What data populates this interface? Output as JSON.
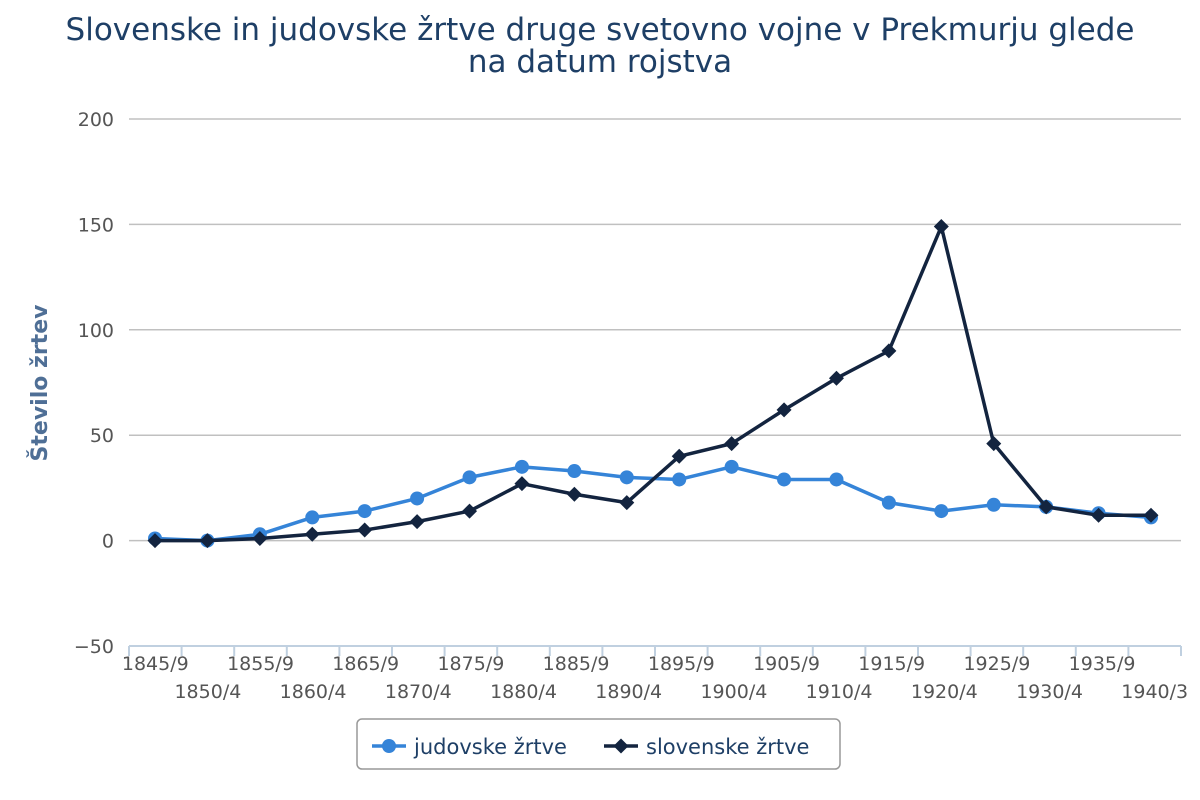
{
  "chart_data": {
    "type": "line",
    "title": "Slovenske in judovske žrtve druge svetovno vojne v Prekmurju glede na datum rojstva",
    "title_lines": [
      "Slovenske in judovske žrtve druge svetovno vojne v Prekmurju glede",
      "na datum rojstva"
    ],
    "ylabel": "Število žrtev",
    "xlabel": "",
    "ylim": [
      -50,
      200
    ],
    "yticks": [
      200,
      150,
      100,
      50,
      0,
      -50
    ],
    "ytick_labels": [
      "200",
      "150",
      "100",
      "50",
      "0",
      "−50"
    ],
    "categories": [
      "1845/9",
      "1850/4",
      "1855/9",
      "1860/4",
      "1865/9",
      "1870/4",
      "1875/9",
      "1880/4",
      "1885/9",
      "1890/4",
      "1895/9",
      "1900/4",
      "1905/9",
      "1910/4",
      "1915/9",
      "1920/4",
      "1925/9",
      "1930/4",
      "1935/9",
      "1940/3"
    ],
    "grid": true,
    "legend_position": "bottom-center",
    "series": [
      {
        "name": "judovske žrtve",
        "color": "#3584d8",
        "marker": "circle",
        "values": [
          1,
          0,
          3,
          11,
          14,
          20,
          30,
          35,
          33,
          30,
          29,
          35,
          29,
          29,
          18,
          14,
          17,
          16,
          13,
          11
        ]
      },
      {
        "name": "slovenske žrtve",
        "color": "#13243f",
        "marker": "diamond",
        "values": [
          0,
          0,
          1,
          3,
          5,
          9,
          14,
          27,
          22,
          18,
          40,
          46,
          62,
          77,
          90,
          149,
          46,
          16,
          12,
          12
        ]
      }
    ]
  }
}
